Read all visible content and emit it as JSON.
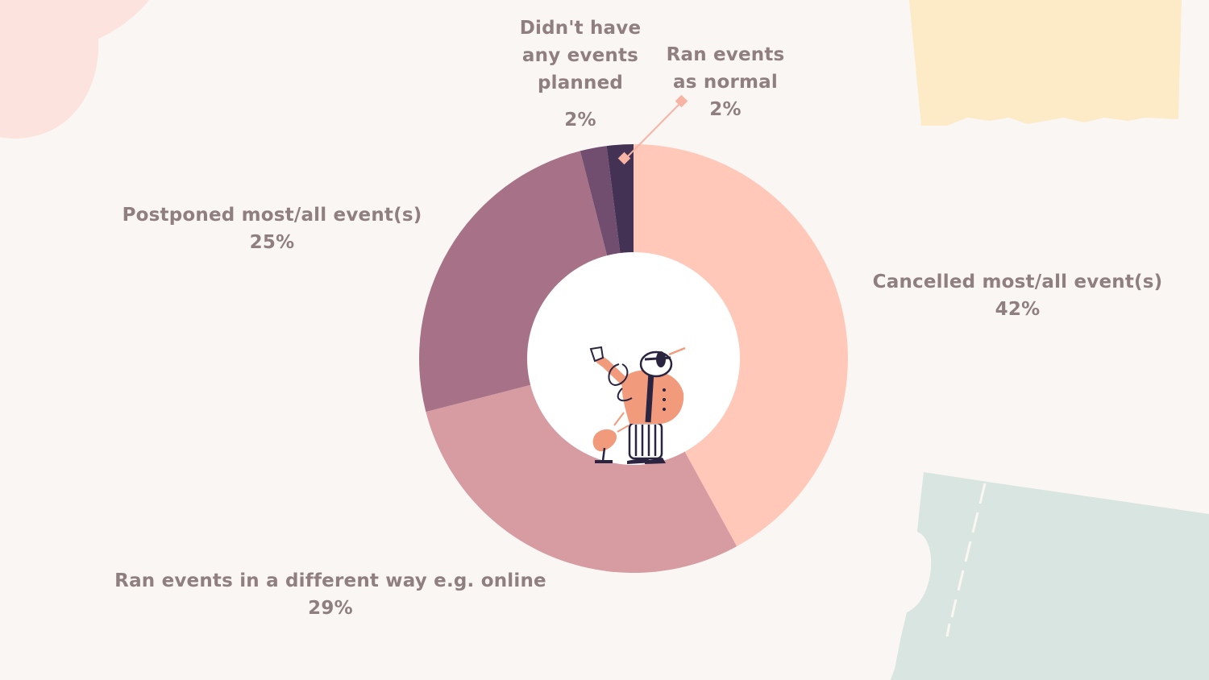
{
  "chart_data": {
    "type": "pie",
    "variant": "donut",
    "title": "",
    "slices": [
      {
        "label": "Cancelled most/all event(s)",
        "value": 42,
        "pct_label": "42%",
        "color": "#ffc8b8"
      },
      {
        "label": "Ran events in a different way e.g. online",
        "value": 29,
        "pct_label": "29%",
        "color": "#d79ba2"
      },
      {
        "label": "Postponed most/all event(s)",
        "value": 25,
        "pct_label": "25%",
        "color": "#a77287"
      },
      {
        "label_lines": [
          "Didn't have",
          "any events",
          "planned"
        ],
        "label": "Didn't have any events planned",
        "value": 2,
        "pct_label": "2%",
        "color": "#714d70"
      },
      {
        "label_lines": [
          "Ran events",
          "as normal"
        ],
        "label": "Ran events as normal",
        "value": 2,
        "pct_label": "2%",
        "color": "#433254"
      }
    ],
    "leader_color": "#f7b3a3",
    "label_color": "#8f7f80"
  },
  "decor": {
    "pink_blob": "#fde3dd",
    "yellow_ticket": "#fdebc8",
    "green_ticket": "#d8e5e0",
    "figure_colors": {
      "skin": "#f29a7c",
      "ink": "#2a2440"
    }
  }
}
